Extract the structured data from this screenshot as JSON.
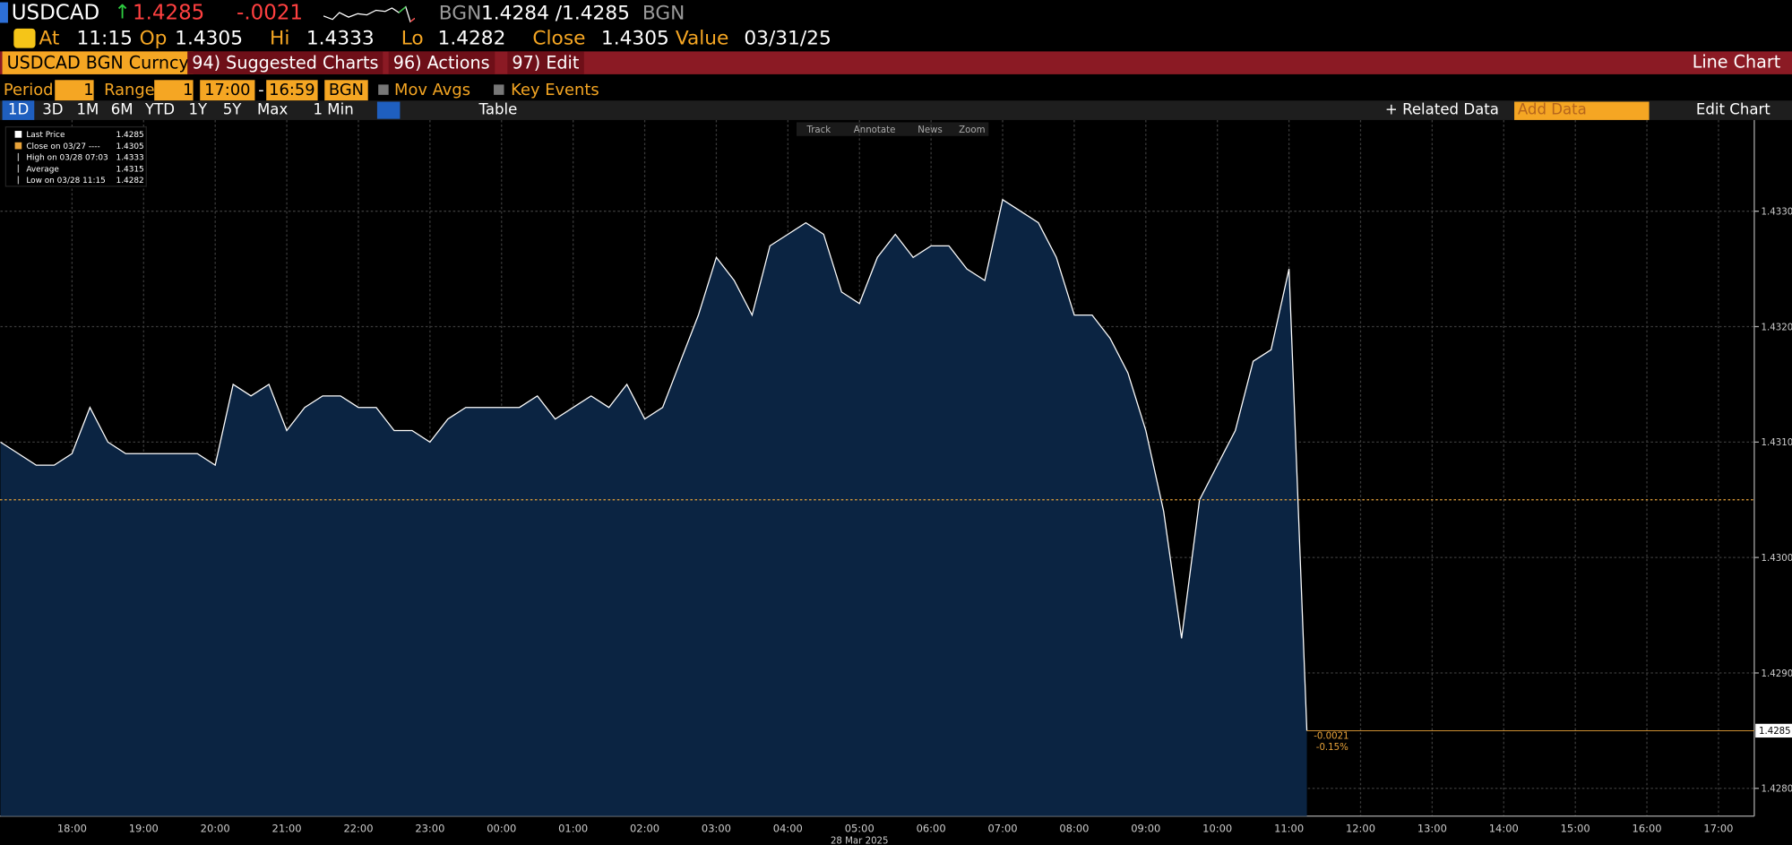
{
  "header": {
    "ticker": "USDCAD",
    "price": "1.4285",
    "change": "-.0021",
    "source": "BGN",
    "bid_ask": "1.4284 /1.4285",
    "source2": "BGN",
    "at_label": "At",
    "at_time": "11:15",
    "open_label": "Op",
    "open": "1.4305",
    "high_label": "Hi",
    "high": "1.4333",
    "low_label": "Lo",
    "low": "1.4282",
    "close_label": "Close",
    "close": "1.4305",
    "value_label": "Value",
    "value_date": "03/31/25"
  },
  "menu": {
    "security": "USDCAD BGN Curncy",
    "suggested": "94) Suggested Charts",
    "actions": "96) Actions",
    "edit": "97) Edit",
    "chart_kind": "Line Chart"
  },
  "toolbar": {
    "period_label": "Period",
    "period": "1",
    "range_label": "Range",
    "range": "1",
    "start": "17:00",
    "dash": "-",
    "end": "16:59",
    "source": "BGN",
    "mov_avgs": "Mov Avgs",
    "key_events": "Key Events"
  },
  "ranges": {
    "buttons": [
      "1D",
      "3D",
      "1M",
      "6M",
      "YTD",
      "1Y",
      "5Y",
      "Max"
    ],
    "interval": "1 Min",
    "table": "Table",
    "related": "+ Related Data",
    "add_data": "Add Data",
    "edit_chart": "Edit Chart"
  },
  "tools": [
    "Track",
    "Annotate",
    "News",
    "Zoom"
  ],
  "chart_data": {
    "type": "line",
    "legend_items": [
      {
        "name": "Last Price",
        "value": "1.4285"
      },
      {
        "name": "Close on 03/27 ----",
        "value": "1.4305"
      },
      {
        "name": "High on 03/28 07:03",
        "value": "1.4333"
      },
      {
        "name": "Average",
        "value": "1.4315"
      },
      {
        "name": "Low on 03/28 11:15",
        "value": "1.4282"
      }
    ],
    "x": [
      "17:00",
      "17:15",
      "17:30",
      "17:45",
      "18:00",
      "18:15",
      "18:30",
      "18:45",
      "19:00",
      "19:15",
      "19:30",
      "19:45",
      "20:00",
      "20:15",
      "20:30",
      "20:45",
      "21:00",
      "21:15",
      "21:30",
      "21:45",
      "22:00",
      "22:15",
      "22:30",
      "22:45",
      "23:00",
      "23:15",
      "23:30",
      "23:45",
      "00:00",
      "00:15",
      "00:30",
      "00:45",
      "01:00",
      "01:15",
      "01:30",
      "01:45",
      "02:00",
      "02:15",
      "02:30",
      "02:45",
      "03:00",
      "03:15",
      "03:30",
      "03:45",
      "04:00",
      "04:15",
      "04:30",
      "04:45",
      "05:00",
      "05:15",
      "05:30",
      "05:45",
      "06:00",
      "06:15",
      "06:30",
      "06:45",
      "07:00",
      "07:15",
      "07:30",
      "07:45",
      "08:00",
      "08:15",
      "08:30",
      "08:45",
      "09:00",
      "09:15",
      "09:30",
      "09:45",
      "10:00",
      "10:15",
      "10:30",
      "10:45",
      "11:00",
      "11:15"
    ],
    "series": [
      {
        "name": "Last Price",
        "color": "#ffffff",
        "fill": "#0b2442",
        "values": [
          1.431,
          1.4309,
          1.4308,
          1.4308,
          1.4309,
          1.4313,
          1.431,
          1.4309,
          1.4309,
          1.4309,
          1.4309,
          1.4309,
          1.4308,
          1.4315,
          1.4314,
          1.4315,
          1.4311,
          1.4313,
          1.4314,
          1.4314,
          1.4313,
          1.4313,
          1.4311,
          1.4311,
          1.431,
          1.4312,
          1.4313,
          1.4313,
          1.4313,
          1.4313,
          1.4314,
          1.4312,
          1.4313,
          1.4314,
          1.4313,
          1.4315,
          1.4312,
          1.4313,
          1.4317,
          1.4321,
          1.4326,
          1.4324,
          1.4321,
          1.4327,
          1.4328,
          1.4329,
          1.4328,
          1.4323,
          1.4322,
          1.4326,
          1.4328,
          1.4326,
          1.4327,
          1.4327,
          1.4325,
          1.4324,
          1.4331,
          1.433,
          1.4329,
          1.4326,
          1.4321,
          1.4321,
          1.4319,
          1.4316,
          1.4311,
          1.4304,
          1.4293,
          1.4305,
          1.4308,
          1.4311,
          1.4317,
          1.4318,
          1.4325,
          1.4285
        ]
      }
    ],
    "xlim": [
      "17:00",
      "17:30"
    ],
    "xticks": [
      "18:00",
      "19:00",
      "20:00",
      "21:00",
      "22:00",
      "23:00",
      "00:00",
      "01:00",
      "02:00",
      "03:00",
      "04:00",
      "05:00",
      "06:00",
      "07:00",
      "08:00",
      "09:00",
      "10:00",
      "11:00",
      "12:00",
      "13:00",
      "14:00",
      "15:00",
      "16:00",
      "17:00"
    ],
    "x_label": "28 Mar 2025",
    "ylim": [
      1.42776,
      1.43379
    ],
    "yticks": [
      {
        "value": 1.428,
        "label": "1.4280"
      },
      {
        "value": 1.429,
        "label": "1.4290"
      },
      {
        "value": 1.43,
        "label": "1.4300"
      },
      {
        "value": 1.431,
        "label": "1.4310"
      },
      {
        "value": 1.432,
        "label": "1.4320"
      },
      {
        "value": 1.433,
        "label": "1.4330"
      }
    ],
    "grid": true,
    "close_line": {
      "value": 1.4305,
      "color": "#e8a33a"
    },
    "last_marker": {
      "value": 1.4285,
      "label": "1.4285",
      "color": "#e8a33a"
    },
    "annotations": [
      "-0.0021",
      "-0.15%"
    ]
  }
}
